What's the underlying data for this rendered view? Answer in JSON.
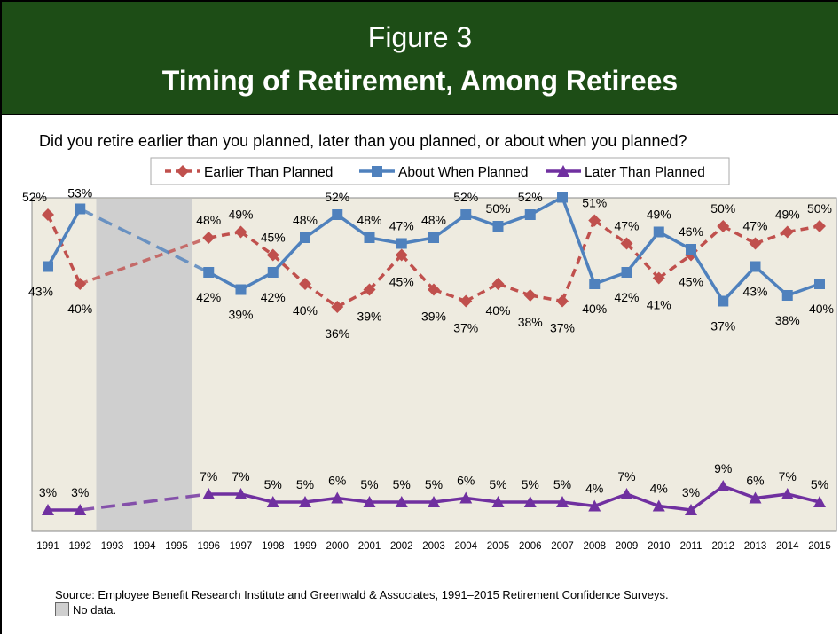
{
  "figure_label": "Figure 3",
  "figure_title": "Timing of Retirement, Among Retirees",
  "question": "Did you retire earlier than you planned, later than you planned, or about when you planned?",
  "source": "Source:  Employee Benefit Research Institute and Greenwald & Associates, 1991–2015 Retirement Confidence Surveys.",
  "no_data_label": "No data.",
  "colors": {
    "header_bg": "#1d4d16",
    "plot_bg": "#eeebe0",
    "no_data_band": "#cfcfcf",
    "earlier": "#c0504d",
    "about": "#4f81bd",
    "later": "#7030a0"
  },
  "chart_data": {
    "type": "line",
    "x": [
      "1991",
      "1992",
      "1993",
      "1994",
      "1995",
      "1996",
      "1997",
      "1998",
      "1999",
      "2000",
      "2001",
      "2002",
      "2003",
      "2004",
      "2005",
      "2006",
      "2007",
      "2008",
      "2009",
      "2010",
      "2011",
      "2012",
      "2013",
      "2014",
      "2015"
    ],
    "no_data_years": [
      "1993",
      "1994",
      "1995"
    ],
    "legend_position": "top",
    "grid": false,
    "series": [
      {
        "name": "Earlier Than Planned",
        "marker": "diamond",
        "line": "dashed",
        "values": [
          52,
          40,
          null,
          null,
          null,
          48,
          49,
          45,
          40,
          36,
          39,
          45,
          39,
          37,
          40,
          38,
          37,
          51,
          47,
          41,
          45,
          50,
          47,
          49,
          50
        ]
      },
      {
        "name": "About When Planned",
        "marker": "square",
        "line": "solid",
        "values": [
          43,
          53,
          null,
          null,
          null,
          42,
          39,
          42,
          48,
          52,
          48,
          47,
          48,
          52,
          50,
          52,
          55,
          40,
          42,
          49,
          46,
          37,
          43,
          38,
          40
        ]
      },
      {
        "name": "Later Than Planned",
        "marker": "triangle",
        "line": "solid",
        "values": [
          3,
          3,
          null,
          null,
          null,
          7,
          7,
          5,
          5,
          6,
          5,
          5,
          5,
          6,
          5,
          5,
          5,
          4,
          7,
          4,
          3,
          9,
          6,
          7,
          5
        ]
      }
    ]
  }
}
